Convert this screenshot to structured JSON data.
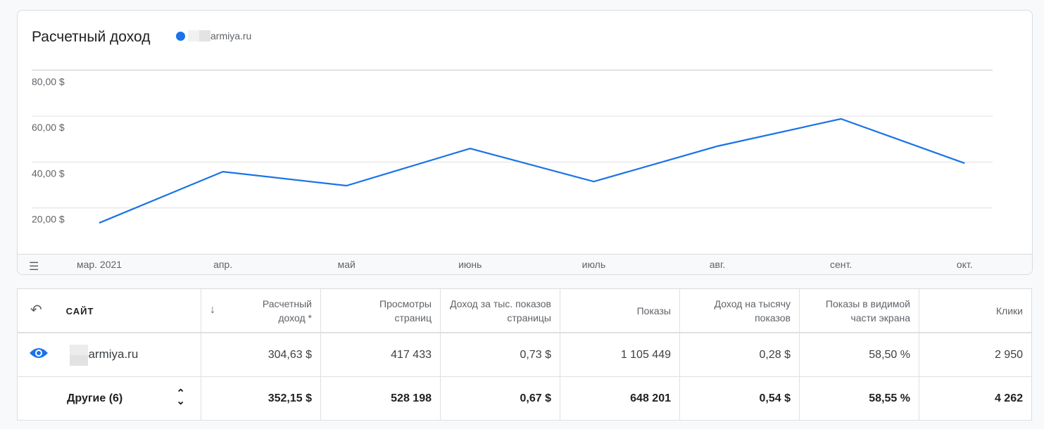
{
  "chart": {
    "title": "Расчетный доход",
    "legend_site": "armiya.ru",
    "color": "#1a73e8"
  },
  "chart_data": {
    "type": "line",
    "title": "Расчетный доход",
    "categories": [
      "мар. 2021",
      "апр.",
      "май",
      "июнь",
      "июль",
      "авг.",
      "сент.",
      "окт."
    ],
    "series": [
      {
        "name": "armiya.ru",
        "values": [
          13.5,
          35.8,
          29.7,
          45.9,
          31.5,
          46.9,
          58.8,
          39.5
        ]
      }
    ],
    "yticks": [
      "20,00 $",
      "40,00 $",
      "60,00 $",
      "80,00 $"
    ],
    "ytick_values": [
      20,
      40,
      60,
      80
    ],
    "ylim": [
      0,
      80
    ],
    "grid": true
  },
  "table": {
    "headers": [
      "САЙТ",
      "Расчетный доход *",
      "Просмотры страниц",
      "Доход за тыс. показов страницы",
      "Показы",
      "Доход на тысячу показов",
      "Показы в видимой части экрана",
      "Клики"
    ],
    "rows": [
      {
        "site": "armiya.ru",
        "values": [
          "304,63 $",
          "417 433",
          "0,73 $",
          "1 105 449",
          "0,28 $",
          "58,50 %",
          "2 950"
        ]
      },
      {
        "site": "Другие (6)",
        "values": [
          "352,15 $",
          "528 198",
          "0,67 $",
          "648 201",
          "0,54 $",
          "58,55 %",
          "4 262"
        ]
      }
    ]
  }
}
